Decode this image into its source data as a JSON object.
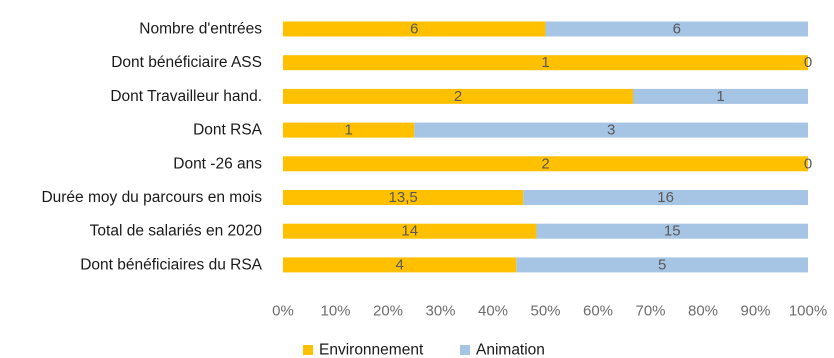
{
  "chart_data": {
    "type": "bar",
    "orientation": "horizontal",
    "stacked": "percent",
    "categories": [
      "Nombre d'entrées",
      "Dont bénéficiaire ASS",
      "Dont Travailleur hand.",
      "Dont RSA",
      "Dont -26 ans",
      "Durée moy du parcours en mois",
      "Total de salariés en 2020",
      "Dont bénéficiaires du RSA"
    ],
    "series": [
      {
        "name": "Environnement",
        "color": "#FFC000",
        "values": [
          6,
          1,
          2,
          1,
          2,
          13.5,
          14,
          4
        ],
        "labels": [
          "6",
          "1",
          "2",
          "1",
          "2",
          "13,5",
          "14",
          "4"
        ]
      },
      {
        "name": "Animation",
        "color": "#A6C4E3",
        "values": [
          6,
          0,
          1,
          3,
          0,
          16,
          15,
          5
        ],
        "labels": [
          "6",
          "0",
          "1",
          "3",
          "0",
          "16",
          "15",
          "5"
        ]
      }
    ],
    "x_ticks": [
      "0%",
      "10%",
      "20%",
      "30%",
      "40%",
      "50%",
      "60%",
      "70%",
      "80%",
      "90%",
      "100%"
    ],
    "xlim": [
      0,
      100
    ],
    "grid": false,
    "legend": "bottom"
  }
}
